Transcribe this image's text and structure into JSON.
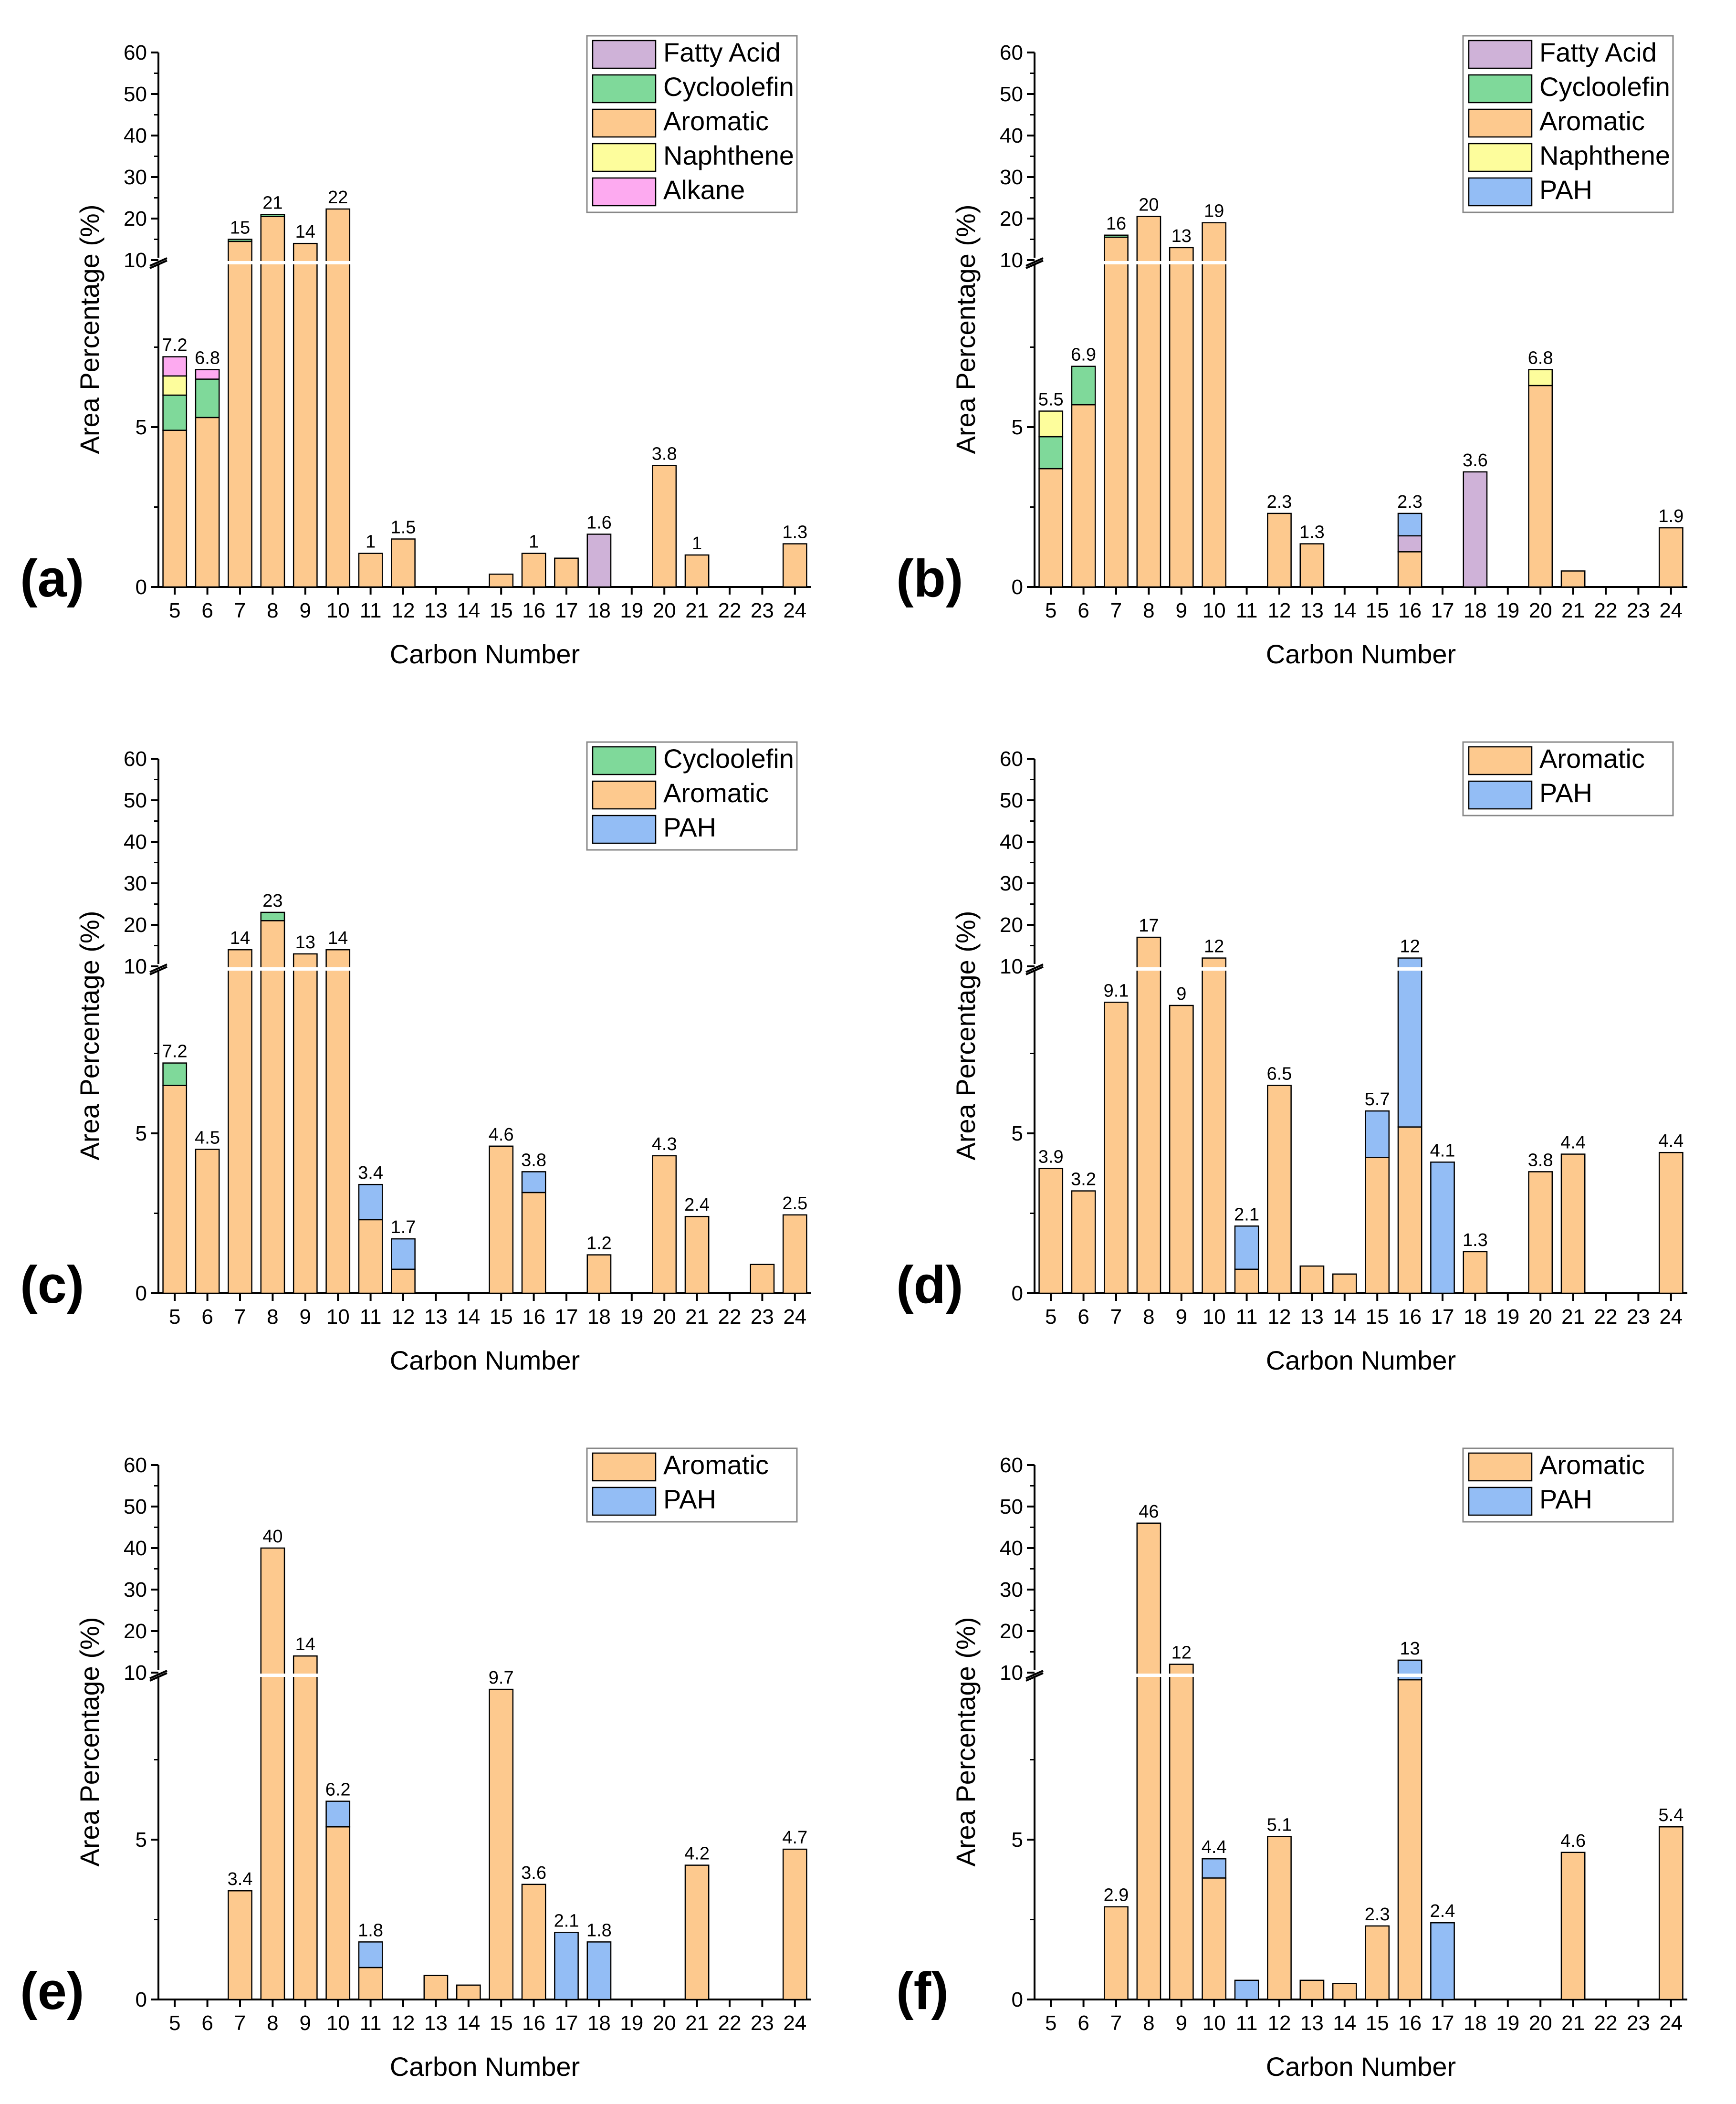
{
  "colors": {
    "Aromatic": "#fdc98e",
    "Cycloolefin": "#7fd99a",
    "Naphthene": "#fdfd9c",
    "Alkane": "#fdaaf0",
    "Fatty Acid": "#cfb2d8",
    "PAH": "#93bdf5"
  },
  "chart_data": [
    {
      "panel_label": "(a)",
      "type": "bar",
      "stacked": true,
      "broken_y_axis": true,
      "xlabel": "Carbon Number",
      "ylabel": "Area Percentage (%)",
      "lower_yticks": [
        "0",
        "5"
      ],
      "upper_yticks": [
        "10",
        "20",
        "30",
        "40",
        "50",
        "60"
      ],
      "ylim_lower": [
        0,
        10
      ],
      "ylim_upper": [
        10,
        60
      ],
      "categories": [
        "5",
        "6",
        "7",
        "8",
        "9",
        "10",
        "11",
        "12",
        "13",
        "14",
        "15",
        "16",
        "17",
        "18",
        "19",
        "20",
        "21",
        "22",
        "23",
        "24"
      ],
      "legend": [
        "Fatty Acid",
        "Cycloolefin",
        "Aromatic",
        "Naphthene",
        "Alkane"
      ],
      "legend_position": "top-right",
      "series": [
        {
          "name": "Aromatic",
          "values": [
            4.9,
            5.3,
            14.5,
            20.5,
            14,
            22.3,
            1.05,
            1.5,
            0,
            0,
            0.4,
            1.05,
            0.9,
            0,
            0,
            3.8,
            1.0,
            0,
            0,
            1.35
          ]
        },
        {
          "name": "Cycloolefin",
          "values": [
            1.1,
            1.2,
            0.5,
            0.5,
            0,
            0,
            0,
            0,
            0,
            0,
            0,
            0,
            0,
            0,
            0,
            0,
            0,
            0,
            0,
            0
          ]
        },
        {
          "name": "Naphthene",
          "values": [
            0.6,
            0,
            0,
            0,
            0,
            0,
            0,
            0,
            0,
            0,
            0,
            0,
            0,
            0,
            0,
            0,
            0,
            0,
            0,
            0
          ]
        },
        {
          "name": "Alkane",
          "values": [
            0.6,
            0.3,
            0,
            0,
            0,
            0,
            0,
            0,
            0,
            0,
            0,
            0,
            0,
            0,
            0,
            0,
            0,
            0,
            0,
            0
          ]
        },
        {
          "name": "Fatty Acid",
          "values": [
            0,
            0,
            0,
            0,
            0,
            0,
            0,
            0,
            0,
            0,
            0,
            0,
            0,
            1.65,
            0,
            0,
            0,
            0,
            0,
            0
          ]
        }
      ],
      "data_labels": [
        "7.2",
        "6.8",
        "15",
        "21",
        "14",
        "22",
        "1",
        "1.5",
        "",
        "",
        "",
        "1",
        "",
        "1.6",
        "",
        "3.8",
        "1",
        "",
        "",
        "1.3"
      ]
    },
    {
      "panel_label": "(b)",
      "type": "bar",
      "stacked": true,
      "broken_y_axis": true,
      "xlabel": "Carbon Number",
      "ylabel": "Area Percentage (%)",
      "lower_yticks": [
        "0",
        "5"
      ],
      "upper_yticks": [
        "10",
        "20",
        "30",
        "40",
        "50",
        "60"
      ],
      "ylim_lower": [
        0,
        10
      ],
      "ylim_upper": [
        10,
        60
      ],
      "categories": [
        "5",
        "6",
        "7",
        "8",
        "9",
        "10",
        "11",
        "12",
        "13",
        "14",
        "15",
        "16",
        "17",
        "18",
        "19",
        "20",
        "21",
        "22",
        "23",
        "24"
      ],
      "legend": [
        "Fatty Acid",
        "Cycloolefin",
        "Aromatic",
        "Naphthene",
        "PAH"
      ],
      "legend_position": "top-right",
      "series": [
        {
          "name": "Aromatic",
          "values": [
            3.7,
            5.7,
            15.5,
            20.5,
            13,
            19,
            0,
            2.3,
            1.35,
            0,
            0,
            1.1,
            0,
            0,
            0,
            6.3,
            0.5,
            0,
            0,
            1.85
          ]
        },
        {
          "name": "Cycloolefin",
          "values": [
            1.0,
            1.2,
            0.5,
            0,
            0,
            0,
            0,
            0,
            0,
            0,
            0,
            0,
            0,
            0,
            0,
            0,
            0,
            0,
            0,
            0
          ]
        },
        {
          "name": "Naphthene",
          "values": [
            0.8,
            0,
            0,
            0,
            0,
            0,
            0,
            0,
            0,
            0,
            0,
            0,
            0,
            0,
            0,
            0.5,
            0,
            0,
            0,
            0
          ]
        },
        {
          "name": "Fatty Acid",
          "values": [
            0,
            0,
            0,
            0,
            0,
            0,
            0,
            0,
            0,
            0,
            0,
            0.5,
            0,
            3.6,
            0,
            0,
            0,
            0,
            0,
            0
          ]
        },
        {
          "name": "PAH",
          "values": [
            0,
            0,
            0,
            0,
            0,
            0,
            0,
            0,
            0,
            0,
            0,
            0.7,
            0,
            0,
            0,
            0,
            0,
            0,
            0,
            0
          ]
        }
      ],
      "data_labels": [
        "5.5",
        "6.9",
        "16",
        "20",
        "13",
        "19",
        "",
        "2.3",
        "1.3",
        "",
        "",
        "2.3",
        "",
        "3.6",
        "",
        "6.8",
        "",
        "",
        "",
        "1.9"
      ]
    },
    {
      "panel_label": "(c)",
      "type": "bar",
      "stacked": true,
      "broken_y_axis": true,
      "xlabel": "Carbon Number",
      "ylabel": "Area Percentage (%)",
      "lower_yticks": [
        "0",
        "5"
      ],
      "upper_yticks": [
        "10",
        "20",
        "30",
        "40",
        "50",
        "60"
      ],
      "ylim_lower": [
        0,
        10
      ],
      "ylim_upper": [
        10,
        60
      ],
      "categories": [
        "5",
        "6",
        "7",
        "8",
        "9",
        "10",
        "11",
        "12",
        "13",
        "14",
        "15",
        "16",
        "17",
        "18",
        "19",
        "20",
        "21",
        "22",
        "23",
        "24"
      ],
      "legend": [
        "Cycloolefin",
        "Aromatic",
        "PAH"
      ],
      "legend_position": "top-right",
      "series": [
        {
          "name": "Aromatic",
          "values": [
            6.5,
            4.5,
            14,
            21,
            13,
            14,
            2.3,
            0.75,
            0,
            0,
            4.6,
            3.15,
            0,
            1.2,
            0,
            4.3,
            2.4,
            0,
            0.9,
            2.45
          ]
        },
        {
          "name": "Cycloolefin",
          "values": [
            0.7,
            0,
            0,
            2,
            0,
            0,
            0,
            0,
            0,
            0,
            0,
            0,
            0,
            0,
            0,
            0,
            0,
            0,
            0,
            0
          ]
        },
        {
          "name": "PAH",
          "values": [
            0,
            0,
            0,
            0,
            0,
            0,
            1.1,
            0.95,
            0,
            0,
            0,
            0.65,
            0,
            0,
            0,
            0,
            0,
            0,
            0,
            0
          ]
        }
      ],
      "data_labels": [
        "7.2",
        "4.5",
        "14",
        "23",
        "13",
        "14",
        "3.4",
        "1.7",
        "",
        "",
        "4.6",
        "3.8",
        "",
        "1.2",
        "",
        "4.3",
        "2.4",
        "",
        "",
        "2.5"
      ]
    },
    {
      "panel_label": "(d)",
      "type": "bar",
      "stacked": true,
      "broken_y_axis": true,
      "xlabel": "Carbon Number",
      "ylabel": "Area Percentage (%)",
      "lower_yticks": [
        "0",
        "5"
      ],
      "upper_yticks": [
        "10",
        "20",
        "30",
        "40",
        "50",
        "60"
      ],
      "ylim_lower": [
        0,
        10
      ],
      "ylim_upper": [
        10,
        60
      ],
      "categories": [
        "5",
        "6",
        "7",
        "8",
        "9",
        "10",
        "11",
        "12",
        "13",
        "14",
        "15",
        "16",
        "17",
        "18",
        "19",
        "20",
        "21",
        "22",
        "23",
        "24"
      ],
      "legend": [
        "Aromatic",
        "PAH"
      ],
      "legend_position": "top-right",
      "series": [
        {
          "name": "Aromatic",
          "values": [
            3.9,
            3.2,
            9.1,
            17,
            9,
            12,
            0.75,
            6.5,
            0.85,
            0.6,
            4.25,
            5.2,
            0,
            1.3,
            0,
            3.8,
            4.35,
            0,
            0,
            4.4
          ]
        },
        {
          "name": "PAH",
          "values": [
            0,
            0,
            0,
            0,
            0,
            0,
            1.35,
            0,
            0,
            0,
            1.45,
            6.8,
            4.1,
            0,
            0,
            0,
            0,
            0,
            0,
            0
          ]
        }
      ],
      "data_labels": [
        "3.9",
        "3.2",
        "9.1",
        "17",
        "9",
        "12",
        "2.1",
        "6.5",
        "",
        "",
        "5.7",
        "12",
        "4.1",
        "1.3",
        "",
        "3.8",
        "4.4",
        "",
        "",
        "4.4"
      ]
    },
    {
      "panel_label": "(e)",
      "type": "bar",
      "stacked": true,
      "broken_y_axis": true,
      "xlabel": "Carbon Number",
      "ylabel": "Area Percentage (%)",
      "lower_yticks": [
        "0",
        "5"
      ],
      "upper_yticks": [
        "10",
        "20",
        "30",
        "40",
        "50",
        "60"
      ],
      "ylim_lower": [
        0,
        10
      ],
      "ylim_upper": [
        10,
        60
      ],
      "categories": [
        "5",
        "6",
        "7",
        "8",
        "9",
        "10",
        "11",
        "12",
        "13",
        "14",
        "15",
        "16",
        "17",
        "18",
        "19",
        "20",
        "21",
        "22",
        "23",
        "24"
      ],
      "legend": [
        "Aromatic",
        "PAH"
      ],
      "legend_position": "top-right",
      "series": [
        {
          "name": "Aromatic",
          "values": [
            0,
            0,
            3.4,
            40,
            14,
            5.4,
            1.0,
            0,
            0.75,
            0.45,
            9.7,
            3.6,
            0,
            0,
            0,
            0,
            4.2,
            0,
            0,
            4.7
          ]
        },
        {
          "name": "PAH",
          "values": [
            0,
            0,
            0,
            0,
            0,
            0.8,
            0.8,
            0,
            0,
            0,
            0,
            0,
            2.1,
            1.8,
            0,
            0,
            0,
            0,
            0,
            0
          ]
        }
      ],
      "data_labels": [
        "",
        "",
        "3.4",
        "40",
        "14",
        "6.2",
        "1.8",
        "",
        "",
        "",
        "9.7",
        "3.6",
        "2.1",
        "1.8",
        "",
        "",
        "4.2",
        "",
        "",
        "4.7"
      ]
    },
    {
      "panel_label": "(f)",
      "type": "bar",
      "stacked": true,
      "broken_y_axis": true,
      "xlabel": "Carbon Number",
      "ylabel": "Area Percentage (%)",
      "lower_yticks": [
        "0",
        "5"
      ],
      "upper_yticks": [
        "10",
        "20",
        "30",
        "40",
        "50",
        "60"
      ],
      "ylim_lower": [
        0,
        10
      ],
      "ylim_upper": [
        10,
        60
      ],
      "categories": [
        "5",
        "6",
        "7",
        "8",
        "9",
        "10",
        "11",
        "12",
        "13",
        "14",
        "15",
        "16",
        "17",
        "18",
        "19",
        "20",
        "21",
        "22",
        "23",
        "24"
      ],
      "legend": [
        "Aromatic",
        "PAH"
      ],
      "legend_position": "top-right",
      "series": [
        {
          "name": "Aromatic",
          "values": [
            0,
            0,
            2.9,
            46,
            12,
            3.8,
            0,
            5.1,
            0.6,
            0.5,
            2.3,
            10,
            0,
            0,
            0,
            0,
            4.6,
            0,
            0,
            5.4
          ]
        },
        {
          "name": "PAH",
          "values": [
            0,
            0,
            0,
            0,
            0,
            0.6,
            0.6,
            0,
            0,
            0,
            0,
            3,
            2.4,
            0,
            0,
            0,
            0,
            0,
            0,
            0
          ]
        }
      ],
      "data_labels": [
        "",
        "",
        "2.9",
        "46",
        "12",
        "4.4",
        "",
        "5.1",
        "",
        "",
        "2.3",
        "13",
        "2.4",
        "",
        "",
        "",
        "4.6",
        "",
        "",
        "5.4"
      ]
    }
  ]
}
